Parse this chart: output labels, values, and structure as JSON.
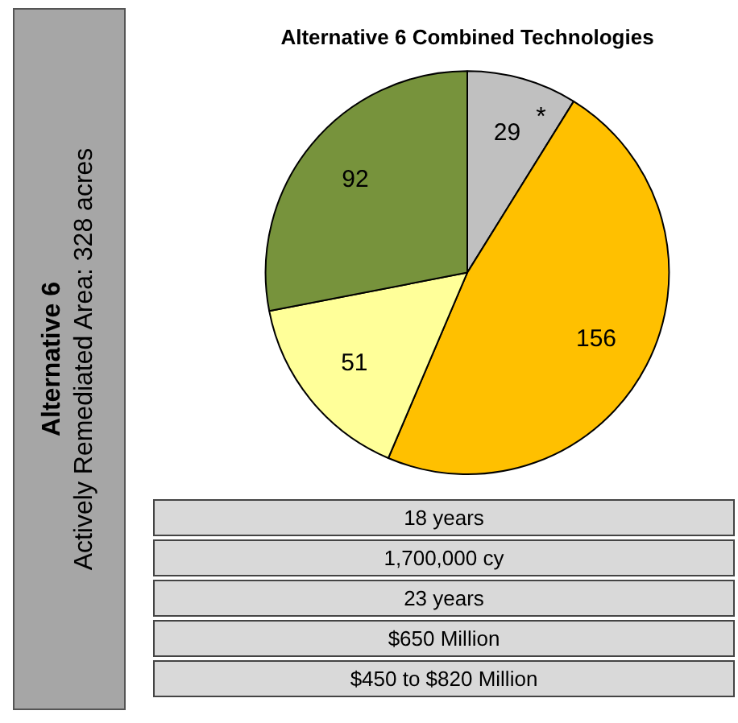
{
  "chart_data": {
    "type": "pie",
    "title": "Alternative 6 Combined Technologies",
    "categories": [
      null,
      null,
      null,
      null
    ],
    "values": [
      29,
      156,
      51,
      92
    ],
    "colors": [
      "#c0c0c0",
      "#ffc000",
      "#ffff99",
      "#77933c"
    ],
    "data_labels": true,
    "legend": false,
    "annotations": [
      "*",
      "Alternative 6",
      "Actively Remediated Area: 328 acres",
      "18 years",
      "1,700,000 cy",
      "23 years",
      "$650 Million",
      "$450 to $820 Million"
    ]
  }
}
